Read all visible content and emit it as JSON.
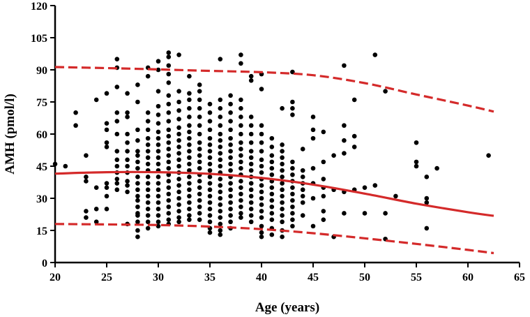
{
  "chart_data": {
    "type": "scatter",
    "title": "",
    "xlabel": "Age (years)",
    "ylabel": "AMH (pmol/l)",
    "xlim": [
      20,
      65
    ],
    "ylim": [
      0,
      120
    ],
    "x_ticks": [
      20,
      25,
      30,
      35,
      40,
      45,
      50,
      55,
      60,
      65
    ],
    "y_ticks": [
      0,
      15,
      30,
      45,
      60,
      75,
      90,
      105,
      120
    ],
    "x_tick_labels": [
      "20",
      "25",
      "30",
      "35",
      "40",
      "45",
      "50",
      "55",
      "60",
      "65"
    ],
    "y_tick_labels": [
      "0",
      "15",
      "30",
      "45",
      "60",
      "75",
      "90",
      "105",
      "120"
    ],
    "grid": false,
    "colors": {
      "points": "#000000",
      "curves": "#d42a2a"
    },
    "points": [
      [
        20,
        46
      ],
      [
        21,
        45
      ],
      [
        22,
        70
      ],
      [
        22,
        64
      ],
      [
        23,
        50
      ],
      [
        23,
        40
      ],
      [
        23,
        38
      ],
      [
        23,
        24
      ],
      [
        23,
        21
      ],
      [
        24,
        76
      ],
      [
        24,
        35
      ],
      [
        24,
        25
      ],
      [
        24,
        19
      ],
      [
        25,
        79
      ],
      [
        25,
        65
      ],
      [
        25,
        62
      ],
      [
        25,
        56
      ],
      [
        25,
        54
      ],
      [
        25,
        37
      ],
      [
        25,
        35
      ],
      [
        25,
        31
      ],
      [
        25,
        25
      ],
      [
        26,
        95
      ],
      [
        26,
        91
      ],
      [
        26,
        82
      ],
      [
        26,
        70
      ],
      [
        26,
        66
      ],
      [
        26,
        60
      ],
      [
        26,
        52
      ],
      [
        26,
        48
      ],
      [
        26,
        45
      ],
      [
        26,
        42
      ],
      [
        26,
        39
      ],
      [
        26,
        37
      ],
      [
        26,
        34
      ],
      [
        27,
        79
      ],
      [
        27,
        70
      ],
      [
        27,
        68
      ],
      [
        27,
        60
      ],
      [
        27,
        56
      ],
      [
        27,
        52
      ],
      [
        27,
        48
      ],
      [
        27,
        45
      ],
      [
        27,
        42
      ],
      [
        27,
        38
      ],
      [
        27,
        36
      ],
      [
        27,
        33
      ],
      [
        27,
        18
      ],
      [
        28,
        83
      ],
      [
        28,
        75
      ],
      [
        28,
        62
      ],
      [
        28,
        57
      ],
      [
        28,
        52
      ],
      [
        28,
        50
      ],
      [
        28,
        47
      ],
      [
        28,
        44
      ],
      [
        28,
        40
      ],
      [
        28,
        37
      ],
      [
        28,
        34
      ],
      [
        28,
        31
      ],
      [
        28,
        29
      ],
      [
        28,
        26
      ],
      [
        28,
        23
      ],
      [
        28,
        22
      ],
      [
        28,
        19
      ],
      [
        28,
        15
      ],
      [
        28,
        12
      ],
      [
        29,
        91
      ],
      [
        29,
        87
      ],
      [
        29,
        70
      ],
      [
        29,
        66
      ],
      [
        29,
        62
      ],
      [
        29,
        58
      ],
      [
        29,
        55
      ],
      [
        29,
        52
      ],
      [
        29,
        49
      ],
      [
        29,
        46
      ],
      [
        29,
        43
      ],
      [
        29,
        40
      ],
      [
        29,
        37
      ],
      [
        29,
        34
      ],
      [
        29,
        31
      ],
      [
        29,
        28
      ],
      [
        29,
        25
      ],
      [
        29,
        22
      ],
      [
        29,
        19
      ],
      [
        29,
        16
      ],
      [
        30,
        94
      ],
      [
        30,
        90
      ],
      [
        30,
        80
      ],
      [
        30,
        73
      ],
      [
        30,
        69
      ],
      [
        30,
        65
      ],
      [
        30,
        61
      ],
      [
        30,
        58
      ],
      [
        30,
        55
      ],
      [
        30,
        52
      ],
      [
        30,
        49
      ],
      [
        30,
        46
      ],
      [
        30,
        43
      ],
      [
        30,
        40
      ],
      [
        30,
        37
      ],
      [
        30,
        34
      ],
      [
        30,
        31
      ],
      [
        30,
        28
      ],
      [
        30,
        25
      ],
      [
        30,
        22
      ],
      [
        30,
        19
      ],
      [
        30,
        17
      ],
      [
        31,
        98
      ],
      [
        31,
        96
      ],
      [
        31,
        92
      ],
      [
        31,
        88
      ],
      [
        31,
        84
      ],
      [
        31,
        78
      ],
      [
        31,
        74
      ],
      [
        31,
        70
      ],
      [
        31,
        66
      ],
      [
        31,
        62
      ],
      [
        31,
        59
      ],
      [
        31,
        56
      ],
      [
        31,
        53
      ],
      [
        31,
        50
      ],
      [
        31,
        47
      ],
      [
        31,
        44
      ],
      [
        31,
        41
      ],
      [
        31,
        38
      ],
      [
        31,
        35
      ],
      [
        31,
        32
      ],
      [
        31,
        29
      ],
      [
        31,
        26
      ],
      [
        31,
        23
      ],
      [
        31,
        20
      ],
      [
        31,
        18
      ],
      [
        32,
        97
      ],
      [
        32,
        80
      ],
      [
        32,
        75
      ],
      [
        32,
        71
      ],
      [
        32,
        67
      ],
      [
        32,
        63
      ],
      [
        32,
        60
      ],
      [
        32,
        57
      ],
      [
        32,
        54
      ],
      [
        32,
        51
      ],
      [
        32,
        48
      ],
      [
        32,
        45
      ],
      [
        32,
        42
      ],
      [
        32,
        39
      ],
      [
        32,
        36
      ],
      [
        32,
        33
      ],
      [
        32,
        30
      ],
      [
        32,
        27
      ],
      [
        32,
        24
      ],
      [
        32,
        21
      ],
      [
        32,
        19
      ],
      [
        33,
        87
      ],
      [
        33,
        79
      ],
      [
        33,
        76
      ],
      [
        33,
        72
      ],
      [
        33,
        68
      ],
      [
        33,
        64
      ],
      [
        33,
        61
      ],
      [
        33,
        58
      ],
      [
        33,
        55
      ],
      [
        33,
        52
      ],
      [
        33,
        49
      ],
      [
        33,
        46
      ],
      [
        33,
        43
      ],
      [
        33,
        40
      ],
      [
        33,
        37
      ],
      [
        33,
        34
      ],
      [
        33,
        31
      ],
      [
        33,
        28
      ],
      [
        33,
        25
      ],
      [
        33,
        22
      ],
      [
        33,
        20
      ],
      [
        34,
        83
      ],
      [
        34,
        80
      ],
      [
        34,
        76
      ],
      [
        34,
        72
      ],
      [
        34,
        68
      ],
      [
        34,
        64
      ],
      [
        34,
        60
      ],
      [
        34,
        56
      ],
      [
        34,
        53
      ],
      [
        34,
        50
      ],
      [
        34,
        47
      ],
      [
        34,
        44
      ],
      [
        34,
        41
      ],
      [
        34,
        38
      ],
      [
        34,
        35
      ],
      [
        34,
        32
      ],
      [
        34,
        29
      ],
      [
        34,
        26
      ],
      [
        34,
        23
      ],
      [
        34,
        20
      ],
      [
        35,
        74
      ],
      [
        35,
        70
      ],
      [
        35,
        66
      ],
      [
        35,
        62
      ],
      [
        35,
        58
      ],
      [
        35,
        55
      ],
      [
        35,
        52
      ],
      [
        35,
        49
      ],
      [
        35,
        46
      ],
      [
        35,
        43
      ],
      [
        35,
        40
      ],
      [
        35,
        37
      ],
      [
        35,
        34
      ],
      [
        35,
        31
      ],
      [
        35,
        28
      ],
      [
        35,
        25
      ],
      [
        35,
        22
      ],
      [
        35,
        19
      ],
      [
        35,
        16
      ],
      [
        35,
        14
      ],
      [
        36,
        95
      ],
      [
        36,
        76
      ],
      [
        36,
        72
      ],
      [
        36,
        68
      ],
      [
        36,
        64
      ],
      [
        36,
        60
      ],
      [
        36,
        57
      ],
      [
        36,
        54
      ],
      [
        36,
        51
      ],
      [
        36,
        48
      ],
      [
        36,
        45
      ],
      [
        36,
        42
      ],
      [
        36,
        39
      ],
      [
        36,
        36
      ],
      [
        36,
        33
      ],
      [
        36,
        30
      ],
      [
        36,
        27
      ],
      [
        36,
        24
      ],
      [
        36,
        21
      ],
      [
        36,
        18
      ],
      [
        36,
        15
      ],
      [
        36,
        13
      ],
      [
        37,
        78
      ],
      [
        37,
        74
      ],
      [
        37,
        70
      ],
      [
        37,
        66
      ],
      [
        37,
        62
      ],
      [
        37,
        58
      ],
      [
        37,
        55
      ],
      [
        37,
        52
      ],
      [
        37,
        49
      ],
      [
        37,
        46
      ],
      [
        37,
        43
      ],
      [
        37,
        40
      ],
      [
        37,
        37
      ],
      [
        37,
        34
      ],
      [
        37,
        31
      ],
      [
        37,
        28
      ],
      [
        37,
        25
      ],
      [
        37,
        22
      ],
      [
        37,
        19
      ],
      [
        37,
        16
      ],
      [
        38,
        97
      ],
      [
        38,
        93
      ],
      [
        38,
        76
      ],
      [
        38,
        72
      ],
      [
        38,
        68
      ],
      [
        38,
        64
      ],
      [
        38,
        60
      ],
      [
        38,
        56
      ],
      [
        38,
        53
      ],
      [
        38,
        50
      ],
      [
        38,
        47
      ],
      [
        38,
        44
      ],
      [
        38,
        41
      ],
      [
        38,
        38
      ],
      [
        38,
        35
      ],
      [
        38,
        32
      ],
      [
        38,
        29
      ],
      [
        38,
        26
      ],
      [
        38,
        23
      ],
      [
        38,
        21
      ],
      [
        39,
        87
      ],
      [
        39,
        85
      ],
      [
        39,
        68
      ],
      [
        39,
        64
      ],
      [
        39,
        60
      ],
      [
        39,
        56
      ],
      [
        39,
        52
      ],
      [
        39,
        49
      ],
      [
        39,
        46
      ],
      [
        39,
        43
      ],
      [
        39,
        40
      ],
      [
        39,
        37
      ],
      [
        39,
        34
      ],
      [
        39,
        31
      ],
      [
        39,
        28
      ],
      [
        39,
        25
      ],
      [
        39,
        22
      ],
      [
        39,
        19
      ],
      [
        40,
        88
      ],
      [
        40,
        81
      ],
      [
        40,
        64
      ],
      [
        40,
        60
      ],
      [
        40,
        56
      ],
      [
        40,
        52
      ],
      [
        40,
        48
      ],
      [
        40,
        45
      ],
      [
        40,
        42
      ],
      [
        40,
        39
      ],
      [
        40,
        36
      ],
      [
        40,
        33
      ],
      [
        40,
        30
      ],
      [
        40,
        27
      ],
      [
        40,
        24
      ],
      [
        40,
        21
      ],
      [
        40,
        17
      ],
      [
        40,
        14
      ],
      [
        40,
        12
      ],
      [
        41,
        58
      ],
      [
        41,
        54
      ],
      [
        41,
        50
      ],
      [
        41,
        47
      ],
      [
        41,
        44
      ],
      [
        41,
        41
      ],
      [
        41,
        38
      ],
      [
        41,
        35
      ],
      [
        41,
        32
      ],
      [
        41,
        29
      ],
      [
        41,
        26
      ],
      [
        41,
        23
      ],
      [
        41,
        20
      ],
      [
        41,
        16
      ],
      [
        41,
        13
      ],
      [
        42,
        72
      ],
      [
        42,
        55
      ],
      [
        42,
        52
      ],
      [
        42,
        49
      ],
      [
        42,
        46
      ],
      [
        42,
        43
      ],
      [
        42,
        40
      ],
      [
        42,
        37
      ],
      [
        42,
        34
      ],
      [
        42,
        31
      ],
      [
        42,
        28
      ],
      [
        42,
        25
      ],
      [
        42,
        22
      ],
      [
        42,
        19
      ],
      [
        42,
        15
      ],
      [
        42,
        12
      ],
      [
        43,
        89
      ],
      [
        43,
        75
      ],
      [
        43,
        72
      ],
      [
        43,
        69
      ],
      [
        43,
        47
      ],
      [
        43,
        44
      ],
      [
        43,
        41
      ],
      [
        43,
        38
      ],
      [
        43,
        35
      ],
      [
        43,
        32
      ],
      [
        43,
        29
      ],
      [
        43,
        26
      ],
      [
        43,
        23
      ],
      [
        43,
        20
      ],
      [
        43,
        17
      ],
      [
        44,
        53
      ],
      [
        44,
        43
      ],
      [
        44,
        40
      ],
      [
        44,
        37
      ],
      [
        44,
        34
      ],
      [
        44,
        31
      ],
      [
        44,
        28
      ],
      [
        44,
        22
      ],
      [
        45,
        68
      ],
      [
        45,
        62
      ],
      [
        45,
        58
      ],
      [
        45,
        44
      ],
      [
        45,
        37
      ],
      [
        45,
        30
      ],
      [
        45,
        17
      ],
      [
        46,
        61
      ],
      [
        46,
        47
      ],
      [
        46,
        39
      ],
      [
        46,
        35
      ],
      [
        46,
        31
      ],
      [
        46,
        24
      ],
      [
        46,
        20
      ],
      [
        47,
        50
      ],
      [
        47,
        34
      ],
      [
        47,
        12
      ],
      [
        48,
        92
      ],
      [
        48,
        64
      ],
      [
        48,
        57
      ],
      [
        48,
        51
      ],
      [
        48,
        33
      ],
      [
        48,
        23
      ],
      [
        49,
        76
      ],
      [
        49,
        59
      ],
      [
        49,
        54
      ],
      [
        49,
        34
      ],
      [
        50,
        35
      ],
      [
        50,
        23
      ],
      [
        51,
        97
      ],
      [
        51,
        36
      ],
      [
        52,
        80
      ],
      [
        52,
        23
      ],
      [
        52,
        11
      ],
      [
        53,
        31
      ],
      [
        55,
        56
      ],
      [
        55,
        47
      ],
      [
        55,
        45
      ],
      [
        56,
        40
      ],
      [
        56,
        30
      ],
      [
        56,
        28
      ],
      [
        56,
        16
      ],
      [
        57,
        44
      ],
      [
        62,
        50
      ]
    ],
    "series": [
      {
        "name": "",
        "style": "solid",
        "x": [
          20,
          25,
          30,
          35,
          40,
          45,
          50,
          55,
          60,
          62.5
        ],
        "values": [
          41.5,
          42.2,
          42.2,
          41.4,
          39.5,
          36.4,
          32.2,
          27.5,
          23.5,
          21.8
        ]
      },
      {
        "name": "",
        "style": "dashed",
        "x": [
          20,
          25,
          30,
          35,
          40,
          45,
          50,
          55,
          60,
          62.5
        ],
        "values": [
          91.3,
          90.8,
          90.2,
          89.5,
          88.9,
          87.5,
          83.8,
          78.5,
          73.3,
          70.5
        ]
      },
      {
        "name": "",
        "style": "dashed",
        "x": [
          20,
          25,
          30,
          35,
          40,
          45,
          50,
          55,
          60,
          62.5
        ],
        "values": [
          18,
          17.8,
          17.5,
          16.8,
          15.6,
          13.7,
          11.3,
          8.7,
          5.9,
          4.4
        ]
      }
    ]
  }
}
